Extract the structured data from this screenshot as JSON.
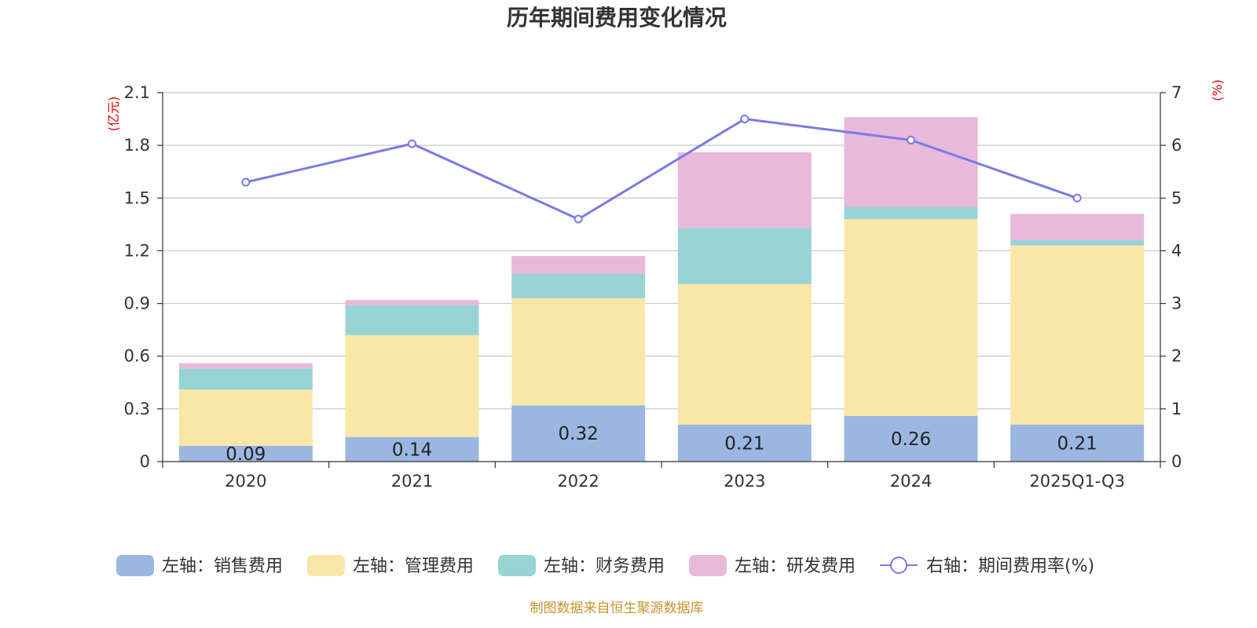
{
  "chart_data": {
    "type": "bar",
    "title": "历年期间费用变化情况",
    "categories": [
      "2020",
      "2021",
      "2022",
      "2023",
      "2024",
      "2025Q1-Q3"
    ],
    "left_axis": {
      "unit": "(亿元)",
      "range": [
        0,
        2.1
      ],
      "ticks": [
        "0",
        "0.3",
        "0.6",
        "0.9",
        "1.2",
        "1.5",
        "1.8",
        "2.1"
      ]
    },
    "right_axis": {
      "unit": "(%)",
      "range": [
        0,
        7
      ],
      "ticks": [
        "0",
        "1",
        "2",
        "3",
        "4",
        "5",
        "6",
        "7"
      ]
    },
    "series": [
      {
        "name": "左轴：销售费用",
        "color": "#9bb7e1",
        "values": [
          0.09,
          0.14,
          0.32,
          0.21,
          0.26,
          0.21
        ],
        "labels": [
          "0.09",
          "0.14",
          "0.32",
          "0.21",
          "0.26",
          "0.21"
        ]
      },
      {
        "name": "左轴：管理费用",
        "color": "#f8e7a6",
        "values": [
          0.32,
          0.58,
          0.61,
          0.8,
          1.12,
          1.02
        ]
      },
      {
        "name": "左轴：财务费用",
        "color": "#98d4d4",
        "values": [
          0.12,
          0.17,
          0.14,
          0.32,
          0.07,
          0.03
        ]
      },
      {
        "name": "左轴：研发费用",
        "color": "#e8b9da",
        "values": [
          0.03,
          0.03,
          0.1,
          0.43,
          0.51,
          0.15
        ]
      }
    ],
    "line_series": {
      "name": "右轴：期间费用率(%)",
      "color": "#7a7ae8",
      "values": [
        5.3,
        6.03,
        4.6,
        6.5,
        6.1,
        5.0
      ]
    },
    "grid": true,
    "legend_position": "bottom"
  },
  "source": "制图数据来自恒生聚源数据库"
}
